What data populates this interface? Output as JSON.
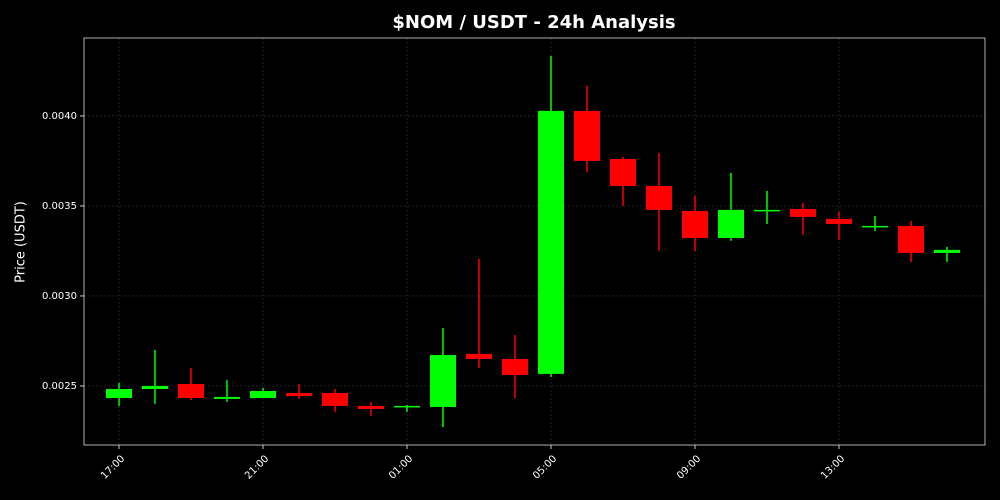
{
  "chart_data": {
    "type": "candlestick",
    "title": "$NOM / USDT - 24h Analysis",
    "y_label": "Price (USDT)",
    "categories": [
      "17:00",
      null,
      null,
      null,
      "21:00",
      null,
      null,
      null,
      "01:00",
      null,
      null,
      null,
      "05:00",
      null,
      null,
      null,
      "09:00",
      null,
      null,
      null,
      "13:00",
      null,
      null,
      null
    ],
    "open": [
      0.002433,
      0.002483,
      0.002511,
      0.002428,
      0.002433,
      0.002461,
      0.002461,
      0.002389,
      0.002383,
      0.002383,
      0.002678,
      0.00265,
      0.002567,
      0.004028,
      0.003761,
      0.003611,
      0.003472,
      0.003322,
      0.003472,
      0.003483,
      0.003428,
      0.003383,
      0.003389,
      0.003239
    ],
    "high": [
      0.002517,
      0.0027,
      0.0026,
      0.002533,
      0.002489,
      0.002511,
      0.002483,
      0.002411,
      0.002394,
      0.002822,
      0.003206,
      0.002783,
      0.004333,
      0.004167,
      0.003772,
      0.003794,
      0.003556,
      0.003683,
      0.003583,
      0.003517,
      0.003467,
      0.003444,
      0.003417,
      0.003272
    ],
    "low": [
      0.002389,
      0.0024,
      0.002422,
      0.002411,
      0.002433,
      0.002428,
      0.002356,
      0.002333,
      0.002356,
      0.002272,
      0.0026,
      0.002433,
      0.00255,
      0.003689,
      0.0035,
      0.00325,
      0.00325,
      0.003306,
      0.0034,
      0.003339,
      0.003311,
      0.003361,
      0.003189,
      0.003189
    ],
    "close": [
      0.002483,
      0.0025,
      0.002433,
      0.002439,
      0.002472,
      0.002444,
      0.002389,
      0.002372,
      0.002389,
      0.002672,
      0.00265,
      0.002561,
      0.004028,
      0.00375,
      0.003611,
      0.003478,
      0.003322,
      0.003478,
      0.003478,
      0.003439,
      0.0034,
      0.003389,
      0.003239,
      0.003256
    ],
    "up_color": "#00ff00",
    "down_color": "#ff0000",
    "ylim": [
      0.002172,
      0.004433
    ],
    "yticks": [
      0.0025,
      {
        "value": 0.003,
        "label": "0.0030"
      },
      0.0035,
      {
        "value": 0.004,
        "label": "0.0040"
      }
    ],
    "grid": true
  }
}
